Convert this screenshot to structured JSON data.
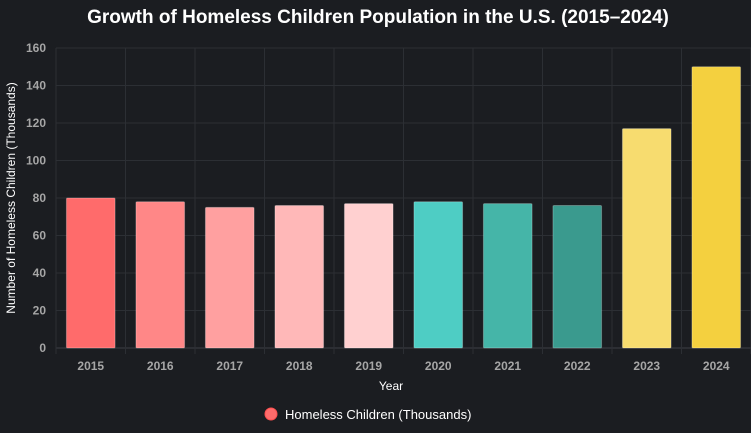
{
  "chart_data": {
    "type": "bar",
    "title": "Growth of Homeless Children Population in the U.S. (2015–2024)",
    "xlabel": "Year",
    "ylabel": "Number of Homeless Children (Thousands)",
    "ylim": [
      0,
      160
    ],
    "yticks": [
      "0",
      "20",
      "40",
      "60",
      "80",
      "100",
      "120",
      "140",
      "160"
    ],
    "categories": [
      "2015",
      "2016",
      "2017",
      "2018",
      "2019",
      "2020",
      "2021",
      "2022",
      "2023",
      "2024"
    ],
    "series": [
      {
        "name": "Homeless Children (Thousands)",
        "values": [
          80,
          78,
          75,
          76,
          77,
          78,
          77,
          76,
          117,
          150
        ]
      }
    ],
    "bar_colors": [
      "#ff6b6b",
      "#ff8787",
      "#ffa0a0",
      "#ffb8b8",
      "#ffd0d0",
      "#4ecdc4",
      "#45b5a8",
      "#3a9a8e",
      "#f7dc6f",
      "#f4d03f"
    ],
    "legend_color": "#ff6b6b",
    "grid": true,
    "legend_position": "bottom"
  }
}
